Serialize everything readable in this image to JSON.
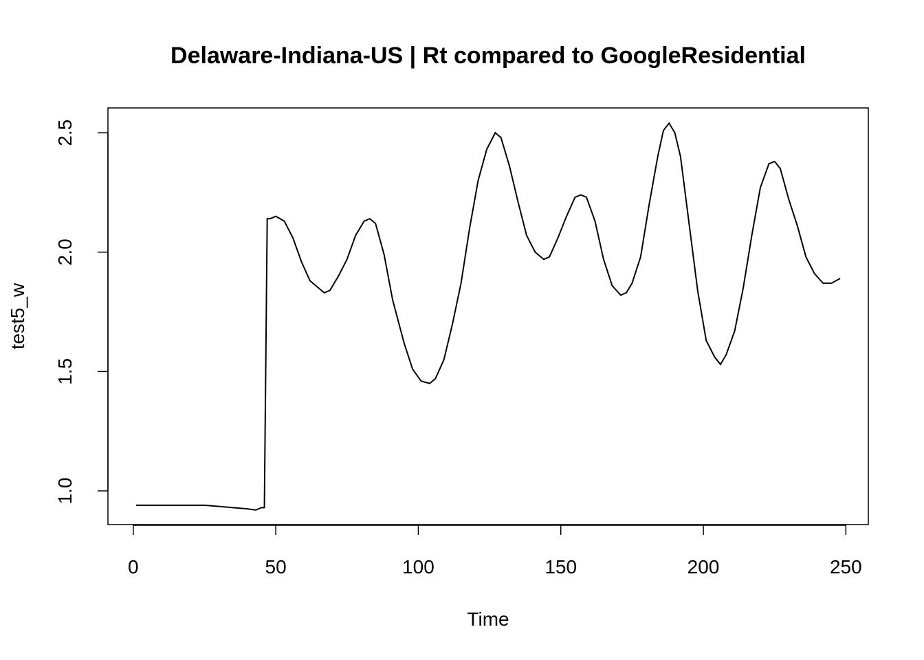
{
  "chart_data": {
    "type": "line",
    "title": "Delaware-Indiana-US | Rt compared to GoogleResidential",
    "x_label": "Time",
    "y_label": "test5_w",
    "x": [
      1,
      5,
      10,
      15,
      20,
      25,
      30,
      35,
      40,
      43,
      45,
      46,
      47,
      48,
      50,
      53,
      56,
      59,
      62,
      64,
      67,
      69,
      72,
      75,
      78,
      81,
      83,
      85,
      88,
      91,
      95,
      98,
      101,
      104,
      106,
      109,
      112,
      115,
      118,
      121,
      124,
      127,
      129,
      132,
      135,
      138,
      141,
      144,
      146,
      149,
      152,
      155,
      157,
      159,
      162,
      165,
      168,
      171,
      173,
      175,
      178,
      181,
      184,
      186,
      188,
      190,
      192,
      195,
      198,
      201,
      204,
      206,
      208,
      211,
      214,
      217,
      220,
      223,
      225,
      227,
      230,
      233,
      236,
      239,
      242,
      245,
      248
    ],
    "series": [
      {
        "name": "test5_w",
        "color": "#000000",
        "values": [
          0.94,
          0.94,
          0.94,
          0.94,
          0.94,
          0.94,
          0.935,
          0.93,
          0.925,
          0.92,
          0.93,
          0.93,
          2.14,
          2.14,
          2.15,
          2.13,
          2.06,
          1.96,
          1.88,
          1.86,
          1.83,
          1.84,
          1.9,
          1.97,
          2.07,
          2.13,
          2.14,
          2.12,
          1.99,
          1.8,
          1.62,
          1.51,
          1.46,
          1.45,
          1.47,
          1.55,
          1.7,
          1.87,
          2.1,
          2.3,
          2.43,
          2.5,
          2.48,
          2.36,
          2.21,
          2.07,
          2.0,
          1.97,
          1.98,
          2.06,
          2.15,
          2.23,
          2.24,
          2.23,
          2.13,
          1.97,
          1.86,
          1.82,
          1.83,
          1.87,
          1.98,
          2.2,
          2.4,
          2.51,
          2.54,
          2.5,
          2.4,
          2.12,
          1.84,
          1.63,
          1.56,
          1.53,
          1.57,
          1.67,
          1.85,
          2.07,
          2.27,
          2.37,
          2.38,
          2.35,
          2.22,
          2.11,
          1.98,
          1.91,
          1.87,
          1.87,
          1.89
        ]
      }
    ],
    "xlim": [
      -8.88,
      257.88
    ],
    "xticks": [
      0,
      50,
      100,
      150,
      200,
      250
    ],
    "ylim": [
      0.859,
      2.604
    ],
    "yticks": [
      {
        "value": 1,
        "label": "1.0"
      },
      1.5,
      {
        "value": 2,
        "label": "2.0"
      },
      2.5
    ],
    "grid": false
  }
}
